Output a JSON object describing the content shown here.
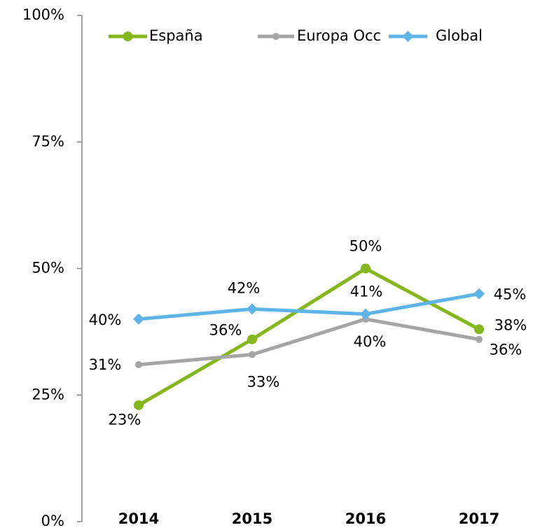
{
  "chart_data": {
    "type": "line",
    "categories": [
      "2014",
      "2015",
      "2016",
      "2017"
    ],
    "series": [
      {
        "name": "España",
        "color": "#84b71b",
        "values": [
          23,
          36,
          50,
          38
        ],
        "value_labels": [
          "23%",
          "36%",
          "50%",
          "38%"
        ]
      },
      {
        "name": "Europa Occ",
        "color": "#a5a5a5",
        "values": [
          31,
          33,
          40,
          36
        ],
        "value_labels": [
          "31%",
          "33%",
          "40%",
          "36%"
        ]
      },
      {
        "name": "Global",
        "color": "#5eb4e6",
        "values": [
          40,
          42,
          41,
          45
        ],
        "value_labels": [
          "40%",
          "42%",
          "41%",
          "45%"
        ]
      }
    ],
    "ylim": [
      0,
      100
    ],
    "yticks": [
      {
        "value": 0,
        "label": "0%"
      },
      {
        "value": 25,
        "label": "25%"
      },
      {
        "value": 50,
        "label": "50%"
      },
      {
        "value": 75,
        "label": "75%"
      },
      {
        "value": 100,
        "label": "100%"
      }
    ],
    "legend": "top",
    "grid": false
  }
}
